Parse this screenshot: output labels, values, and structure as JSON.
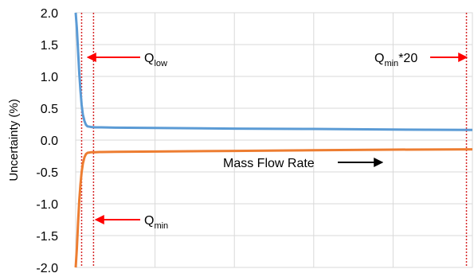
{
  "chart_data": {
    "type": "line",
    "title": "",
    "xlabel": "",
    "ylabel": "Uncertainty (%)",
    "ylim": [
      -2.0,
      2.0
    ],
    "yticks": [
      "2.0",
      "1.5",
      "1.0",
      "0.5",
      "0.0",
      "-0.5",
      "-1.0",
      "-1.5",
      "-2.0"
    ],
    "grid": true,
    "colors": {
      "upper": "#5b9bd5",
      "lower": "#ed7d31",
      "marker_line": "#d62728",
      "arrow_red": "#ff0000",
      "arrow_black": "#000000"
    },
    "series": [
      {
        "x": [
          0.0,
          0.003,
          0.006,
          0.009,
          0.012,
          0.015,
          0.018,
          0.022,
          0.026,
          0.03,
          0.035,
          0.04,
          0.05,
          0.06,
          0.1,
          0.2,
          0.4,
          0.6,
          0.8,
          1.0
        ],
        "values": [
          2.0,
          1.75,
          1.4,
          1.05,
          0.78,
          0.55,
          0.4,
          0.3,
          0.24,
          0.215,
          0.21,
          0.205,
          0.2,
          0.2,
          0.195,
          0.19,
          0.18,
          0.175,
          0.165,
          0.16
        ]
      },
      {
        "x": [
          0.0,
          0.003,
          0.006,
          0.009,
          0.012,
          0.015,
          0.018,
          0.022,
          0.026,
          0.03,
          0.035,
          0.04,
          0.05,
          0.06,
          0.1,
          0.2,
          0.4,
          0.6,
          0.8,
          1.0
        ],
        "values": [
          -2.0,
          -1.7,
          -1.3,
          -0.95,
          -0.7,
          -0.5,
          -0.37,
          -0.27,
          -0.22,
          -0.2,
          -0.195,
          -0.19,
          -0.19,
          -0.188,
          -0.185,
          -0.18,
          -0.17,
          -0.16,
          -0.15,
          -0.145
        ]
      }
    ],
    "x_gridlines": [
      0.2,
      0.4,
      0.6,
      0.8,
      1.0
    ],
    "vertical_markers": [
      0.015,
      0.045,
      0.985
    ],
    "annotations": {
      "q_low": {
        "main": "Q",
        "sub": "low",
        "y": 1.3
      },
      "q_min": {
        "main": "Q",
        "sub": "min",
        "y": -1.25
      },
      "q_min_20": {
        "main": "Q",
        "sub": "min",
        "suffix": "*20",
        "y": 1.3
      },
      "mass_flow": {
        "label": "Mass Flow Rate",
        "y": -0.35
      }
    }
  }
}
